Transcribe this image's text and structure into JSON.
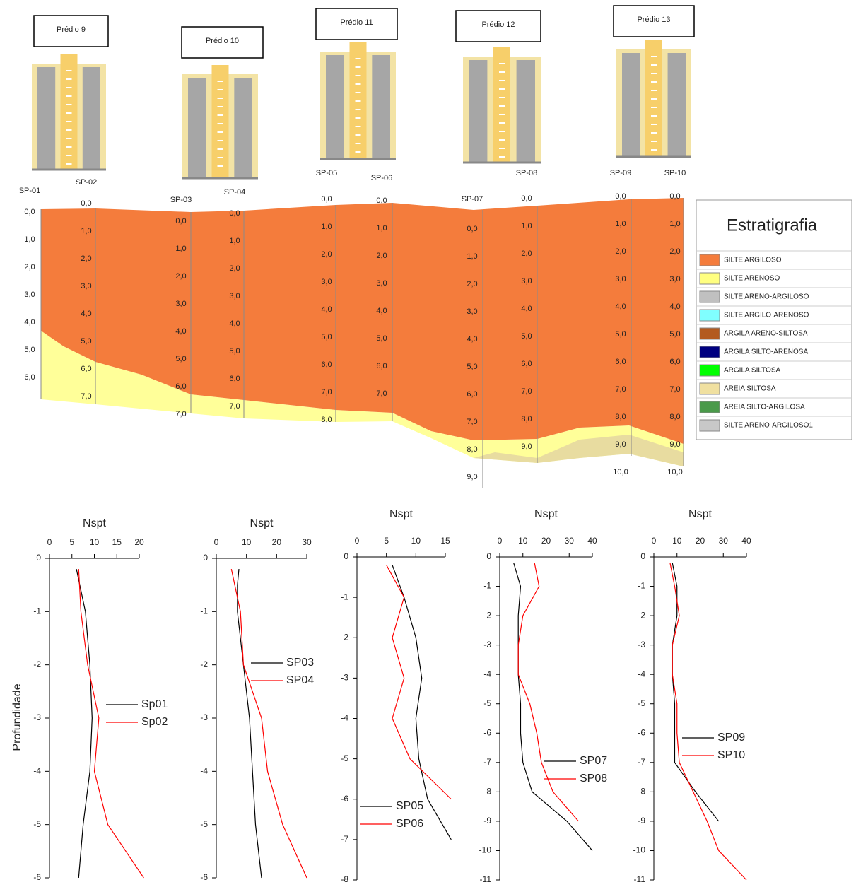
{
  "section": {
    "buildings": [
      "Prédio 9",
      "Prédio 10",
      "Prédio 11",
      "Prédio 12",
      "Prédio 13"
    ],
    "boreholes": [
      {
        "name": "SP-01",
        "depths": [
          "0,0",
          "1,0",
          "2,0",
          "3,0",
          "4,0",
          "5,0",
          "6,0"
        ]
      },
      {
        "name": "SP-02",
        "depths": [
          "0,0",
          "1,0",
          "2,0",
          "3,0",
          "4,0",
          "5,0",
          "6,0",
          "7,0"
        ]
      },
      {
        "name": "SP-03",
        "depths": [
          "0,0",
          "1,0",
          "2,0",
          "3,0",
          "4,0",
          "5,0",
          "6,0",
          "7,0"
        ]
      },
      {
        "name": "SP-04",
        "depths": [
          "0,0",
          "1,0",
          "2,0",
          "3,0",
          "4,0",
          "5,0",
          "6,0",
          "7,0"
        ]
      },
      {
        "name": "SP-05",
        "depths": [
          "0,0",
          "1,0",
          "2,0",
          "3,0",
          "4,0",
          "5,0",
          "6,0",
          "7,0",
          "8,0"
        ]
      },
      {
        "name": "SP-06",
        "depths": [
          "0,0",
          "1,0",
          "2,0",
          "3,0",
          "4,0",
          "5,0",
          "6,0",
          "7,0"
        ]
      },
      {
        "name": "SP-07",
        "depths": [
          "0,0",
          "1,0",
          "2,0",
          "3,0",
          "4,0",
          "5,0",
          "6,0",
          "7,0",
          "8,0",
          "9,0"
        ]
      },
      {
        "name": "SP-08",
        "depths": [
          "0,0",
          "1,0",
          "2,0",
          "3,0",
          "4,0",
          "5,0",
          "6,0",
          "7,0",
          "8,0",
          "9,0"
        ]
      },
      {
        "name": "SP-09",
        "depths": [
          "0,0",
          "1,0",
          "2,0",
          "3,0",
          "4,0",
          "5,0",
          "6,0",
          "7,0",
          "8,0",
          "9,0",
          "10,0"
        ]
      },
      {
        "name": "SP-10",
        "depths": [
          "0,0",
          "1,0",
          "2,0",
          "3,0",
          "4,0",
          "5,0",
          "6,0",
          "7,0",
          "8,0",
          "9,0",
          "10,0"
        ]
      }
    ],
    "legend": {
      "title": "Estratigrafia",
      "items": [
        {
          "label": "SILTE ARGILOSO",
          "color": "#f47c3c"
        },
        {
          "label": "SILTE ARENOSO",
          "color": "#ffff80"
        },
        {
          "label": "SILTE ARENO-ARGILOSO",
          "color": "#c0c0c0"
        },
        {
          "label": "SILTE ARGILO-ARENOSO",
          "color": "#80ffff"
        },
        {
          "label": "ARGILA ARENO-SILTOSA",
          "color": "#b35a1f"
        },
        {
          "label": "ARGILA SILTO-ARENOSA",
          "color": "#000080"
        },
        {
          "label": "ARGILA SILTOSA",
          "color": "#00ff00"
        },
        {
          "label": "AREIA SILTOSA",
          "color": "#f0e0a0"
        },
        {
          "label": "AREIA SILTO-ARGILOSA",
          "color": "#4a9a4a"
        },
        {
          "label": "SILTE ARENO-ARGILOSO1",
          "color": "#c8c8c8"
        }
      ]
    }
  },
  "chart_data": [
    {
      "type": "line",
      "title": "Nspt",
      "ylabel": "Profundidade",
      "xlim": [
        0,
        20
      ],
      "xticks": [
        0,
        5,
        10,
        15,
        20
      ],
      "ylim": [
        -6,
        0
      ],
      "yticks": [
        -6,
        -5,
        -4,
        -3,
        -2,
        -1,
        0
      ],
      "series": [
        {
          "name": "Sp01",
          "color": "#000000",
          "x": [
            6,
            8,
            9,
            9.5,
            9,
            7.5,
            6.5
          ],
          "values": [
            -0.2,
            -1,
            -2,
            -3,
            -4,
            -5,
            -6
          ]
        },
        {
          "name": "Sp02",
          "color": "#ff0000",
          "x": [
            6.5,
            7,
            8.5,
            11,
            10,
            13,
            21
          ],
          "values": [
            -0.2,
            -1,
            -2,
            -3,
            -4,
            -5,
            -6
          ]
        }
      ]
    },
    {
      "type": "line",
      "title": "Nspt",
      "xlim": [
        0,
        30
      ],
      "xticks": [
        0,
        10,
        20,
        30
      ],
      "ylim": [
        -6,
        0
      ],
      "yticks": [
        -6,
        -5,
        -4,
        -3,
        -2,
        -1,
        0
      ],
      "series": [
        {
          "name": "SP03",
          "color": "#000000",
          "x": [
            7.5,
            7,
            7,
            9,
            11,
            12,
            13,
            15
          ],
          "values": [
            -0.2,
            -0.5,
            -1,
            -2,
            -3,
            -4,
            -5,
            -6
          ]
        },
        {
          "name": "SP04",
          "color": "#ff0000",
          "x": [
            5,
            8,
            9,
            15,
            17,
            22,
            30
          ],
          "values": [
            -0.2,
            -1,
            -2,
            -3,
            -4,
            -5,
            -6
          ]
        }
      ]
    },
    {
      "type": "line",
      "title": "Nspt",
      "xlim": [
        0,
        15
      ],
      "xticks": [
        0,
        5,
        10,
        15
      ],
      "ylim": [
        -8,
        0
      ],
      "yticks": [
        -8,
        -7,
        -6,
        -5,
        -4,
        -3,
        -2,
        -1,
        0
      ],
      "series": [
        {
          "name": "SP05",
          "color": "#000000",
          "x": [
            6,
            8,
            10,
            11,
            10,
            10.5,
            12,
            16
          ],
          "values": [
            -0.2,
            -1,
            -2,
            -3,
            -4,
            -5,
            -6,
            -7
          ]
        },
        {
          "name": "SP06",
          "color": "#ff0000",
          "x": [
            5,
            8,
            6,
            8,
            6,
            9,
            16
          ],
          "values": [
            -0.2,
            -1,
            -2,
            -3,
            -4,
            -5,
            -6
          ]
        }
      ]
    },
    {
      "type": "line",
      "title": "Nspt",
      "xlim": [
        0,
        40
      ],
      "xticks": [
        0,
        10,
        20,
        30,
        40
      ],
      "ylim": [
        -11,
        0
      ],
      "yticks": [
        -11,
        -10,
        -9,
        -8,
        -7,
        -6,
        -5,
        -4,
        -3,
        -2,
        -1,
        0
      ],
      "series": [
        {
          "name": "SP07",
          "color": "#000000",
          "x": [
            6,
            9,
            8,
            8,
            8,
            9,
            9,
            10,
            14,
            29,
            40
          ],
          "values": [
            -0.2,
            -1,
            -2,
            -3,
            -4,
            -5,
            -6,
            -7,
            -8,
            -9,
            -10
          ]
        },
        {
          "name": "SP08",
          "color": "#ff0000",
          "x": [
            15,
            17,
            10,
            8,
            8,
            13,
            16,
            18,
            23,
            34
          ],
          "values": [
            -0.2,
            -1,
            -2,
            -3,
            -4,
            -5,
            -6,
            -7,
            -8,
            -9
          ]
        }
      ]
    },
    {
      "type": "line",
      "title": "Nspt",
      "xlim": [
        0,
        40
      ],
      "xticks": [
        0,
        10,
        20,
        30,
        40
      ],
      "ylim": [
        -11,
        0
      ],
      "yticks": [
        -11,
        -10,
        -9,
        -8,
        -7,
        -6,
        -5,
        -4,
        -3,
        -2,
        -1,
        0
      ],
      "series": [
        {
          "name": "SP09",
          "color": "#000000",
          "x": [
            8,
            10,
            10,
            8,
            8,
            9,
            9,
            9,
            18,
            28
          ],
          "values": [
            -0.2,
            -1,
            -2,
            -3,
            -4,
            -5,
            -6,
            -7,
            -8,
            -9
          ]
        },
        {
          "name": "SP10",
          "color": "#ff0000",
          "x": [
            7,
            9,
            11,
            8,
            8,
            10,
            10,
            11,
            17,
            23,
            28,
            40
          ],
          "values": [
            -0.2,
            -1,
            -2,
            -3,
            -4,
            -5,
            -6,
            -7,
            -8,
            -9,
            -10,
            -11
          ]
        }
      ]
    }
  ]
}
